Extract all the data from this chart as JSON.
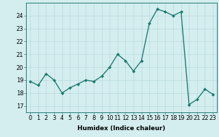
{
  "x": [
    0,
    1,
    2,
    3,
    4,
    5,
    6,
    7,
    8,
    9,
    10,
    11,
    12,
    13,
    14,
    15,
    16,
    17,
    18,
    19,
    20,
    21,
    22,
    23
  ],
  "y": [
    18.9,
    18.6,
    19.5,
    19.0,
    18.0,
    18.4,
    18.7,
    19.0,
    18.9,
    19.3,
    20.0,
    21.0,
    20.5,
    19.7,
    20.5,
    23.4,
    24.5,
    24.3,
    24.0,
    24.3,
    17.1,
    17.5,
    18.3,
    17.9
  ],
  "line_color": "#1a7a6e",
  "marker": "D",
  "markersize": 2.0,
  "linewidth": 1.0,
  "bg_color": "#d4edef",
  "grid_color": "#b8d8dc",
  "xlabel": "Humidex (Indice chaleur)",
  "ylabel_ticks": [
    17,
    18,
    19,
    20,
    21,
    22,
    23,
    24
  ],
  "xlim": [
    -0.5,
    23.5
  ],
  "ylim": [
    16.5,
    25.0
  ],
  "xlabel_fontsize": 6.5,
  "tick_fontsize": 6.0
}
